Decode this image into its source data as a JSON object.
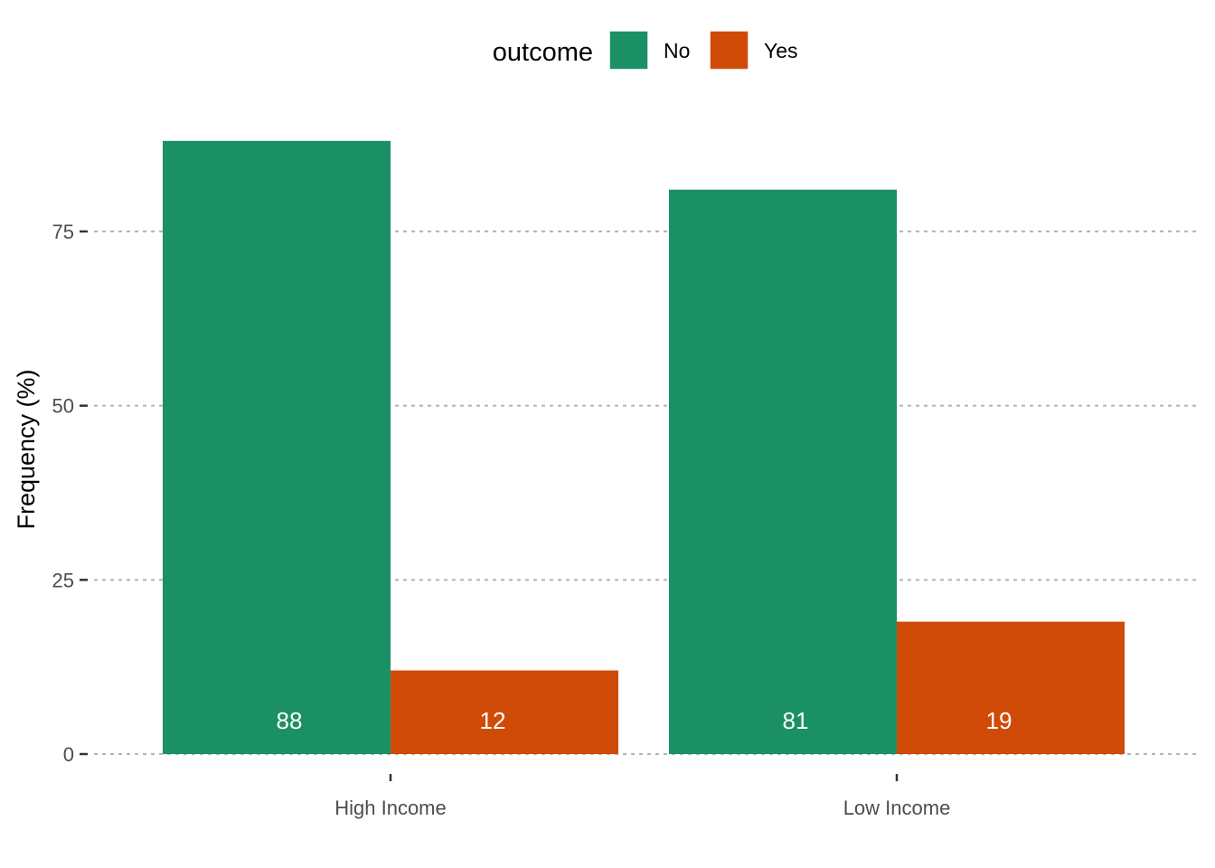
{
  "chart_data": {
    "type": "bar",
    "categories": [
      "High Income",
      "Low Income"
    ],
    "series": [
      {
        "name": "No",
        "values": [
          88,
          81
        ],
        "labels": [
          "88",
          "81"
        ],
        "color": "#1b9065"
      },
      {
        "name": "Yes",
        "values": [
          12,
          19
        ],
        "labels": [
          "12",
          "19"
        ],
        "color": "#d04b08"
      }
    ],
    "ylabel": "Frequency (%)",
    "xlabel": "",
    "ylim": [
      0,
      93
    ],
    "yticks": [
      0,
      25,
      50,
      75
    ],
    "ytick_labels": [
      "0",
      "25",
      "50",
      "75"
    ],
    "grid": "horizontal-dotted",
    "legend": {
      "title": "outcome",
      "position": "top",
      "entries": [
        "No",
        "Yes"
      ]
    }
  }
}
